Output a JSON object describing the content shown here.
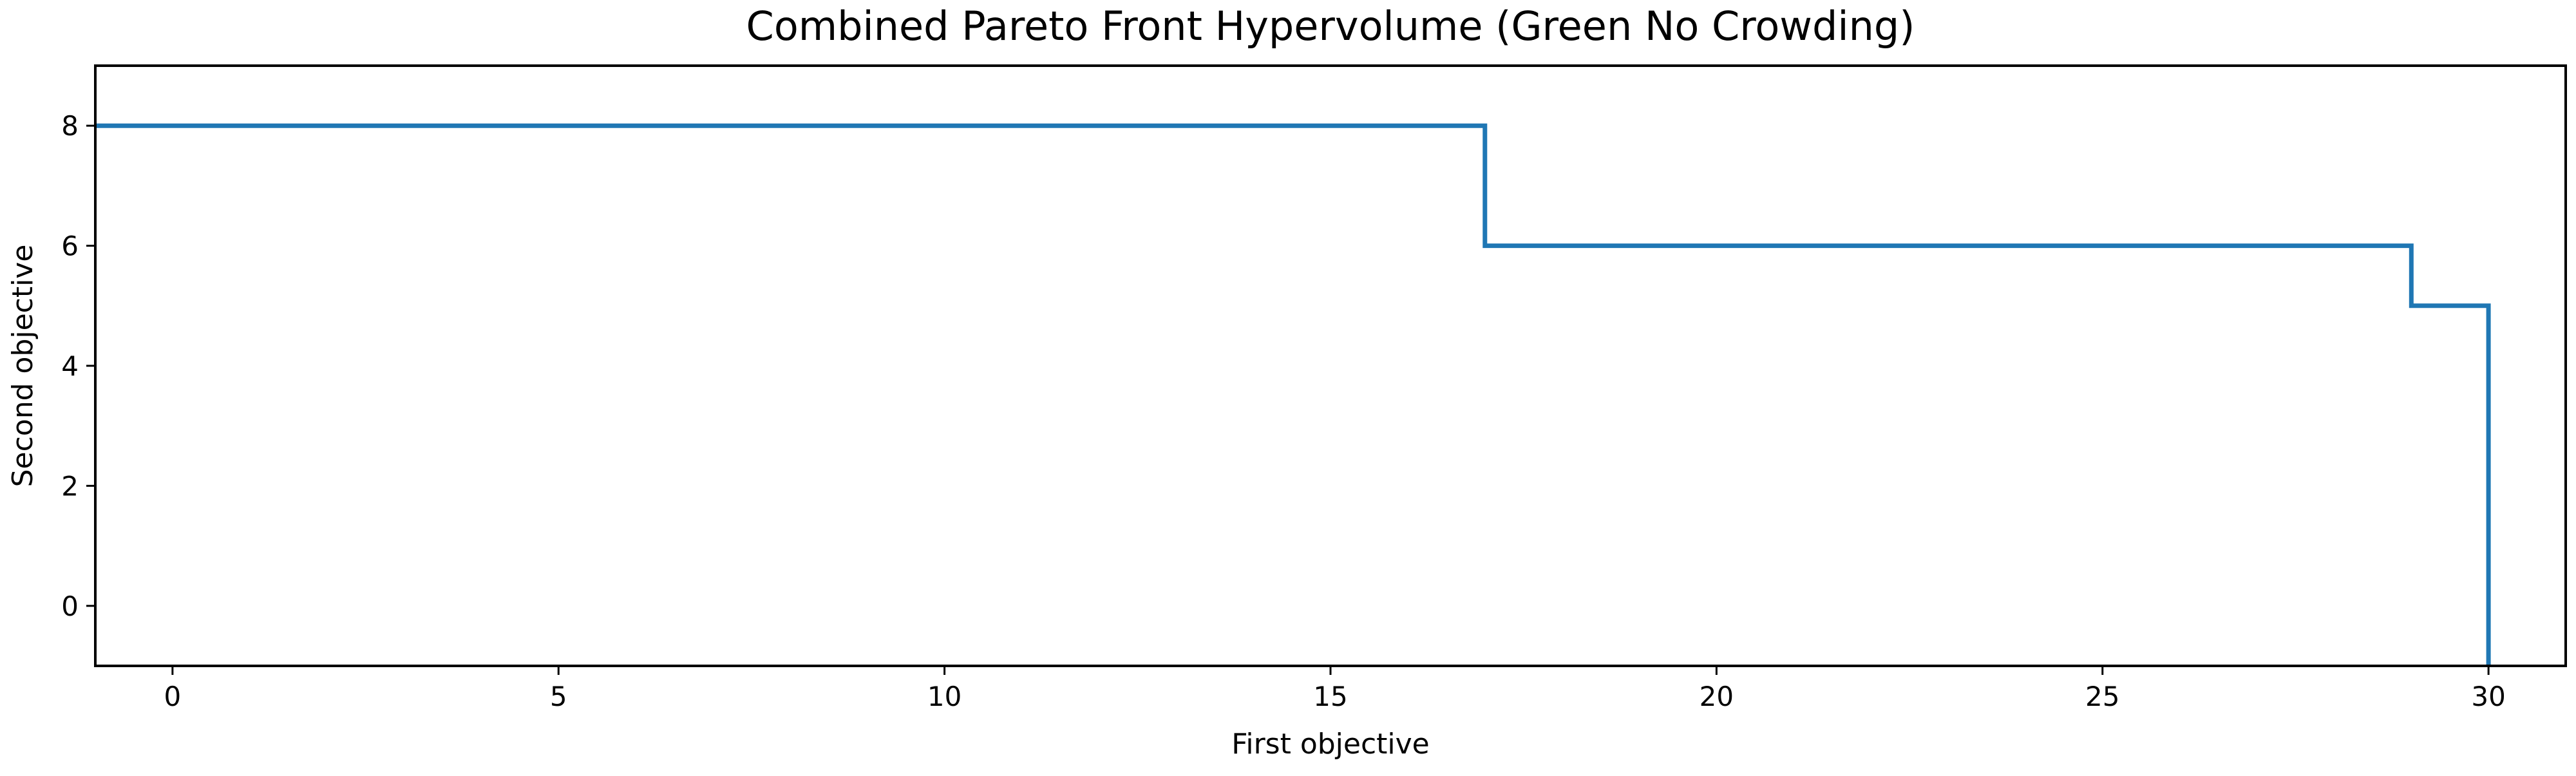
{
  "chart_data": {
    "type": "line",
    "title": "Combined Pareto Front Hypervolume (Green No Crowding)",
    "xlabel": "First objective",
    "ylabel": "Second objective",
    "xlim": [
      -1,
      31
    ],
    "ylim": [
      -1,
      9
    ],
    "xticks": [
      0,
      5,
      10,
      15,
      20,
      25,
      30
    ],
    "yticks": [
      0,
      2,
      4,
      6,
      8
    ],
    "grid": false,
    "line_color": "#1f77b4",
    "series": [
      {
        "points": [
          {
            "x": -1,
            "y": 8
          },
          {
            "x": 17,
            "y": 8
          },
          {
            "x": 17,
            "y": 6
          },
          {
            "x": 29,
            "y": 6
          },
          {
            "x": 29,
            "y": 5
          },
          {
            "x": 30,
            "y": 5
          },
          {
            "x": 30,
            "y": -1
          }
        ]
      }
    ]
  }
}
